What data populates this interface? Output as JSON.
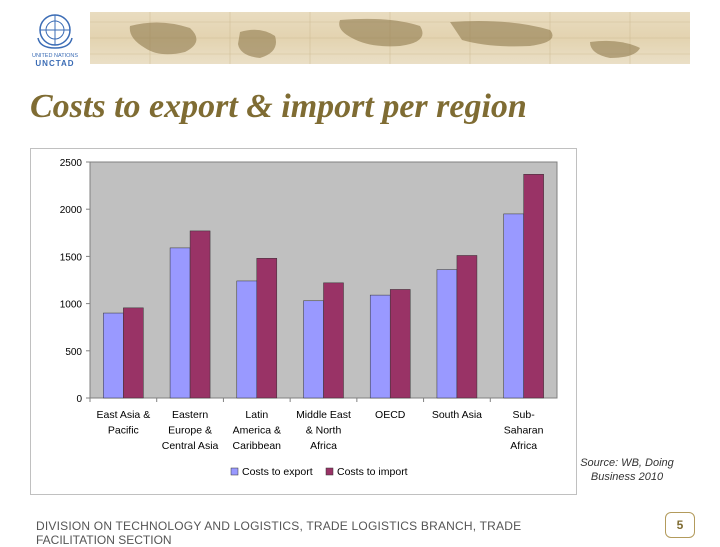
{
  "header": {
    "logo_text_top": "UNITED NATIONS",
    "logo_text_bottom": "UNCTAD"
  },
  "title": "Costs to export & import per region",
  "source": "Source: WB, Doing Business 2010",
  "footer": {
    "line1": "DIVISION ON TECHNOLOGY AND LOGISTICS, TRADE LOGISTICS BRANCH, TRADE",
    "line2": "FACILITATION SECTION"
  },
  "page_number": "5",
  "chart_data": {
    "type": "bar",
    "categories": [
      [
        "East Asia &",
        "Pacific"
      ],
      [
        "Eastern",
        "Europe &",
        "Central Asia"
      ],
      [
        "Latin",
        "America &",
        "Caribbean"
      ],
      [
        "Middle East",
        "& North",
        "Africa"
      ],
      [
        "OECD"
      ],
      [
        "South Asia"
      ],
      [
        "Sub-",
        "Saharan",
        "Africa"
      ]
    ],
    "series": [
      {
        "name": "Costs to export",
        "color": "#9999ff",
        "values": [
          900,
          1590,
          1240,
          1030,
          1090,
          1360,
          1950
        ]
      },
      {
        "name": "Costs to import",
        "color": "#993366",
        "values": [
          955,
          1770,
          1480,
          1220,
          1150,
          1510,
          2370
        ]
      }
    ],
    "ylim": [
      0,
      2500
    ],
    "yticks": [
      0,
      500,
      1000,
      1500,
      2000,
      2500
    ],
    "legend_position": "bottom",
    "plot_background": "#c0c0c0",
    "grid": false
  }
}
